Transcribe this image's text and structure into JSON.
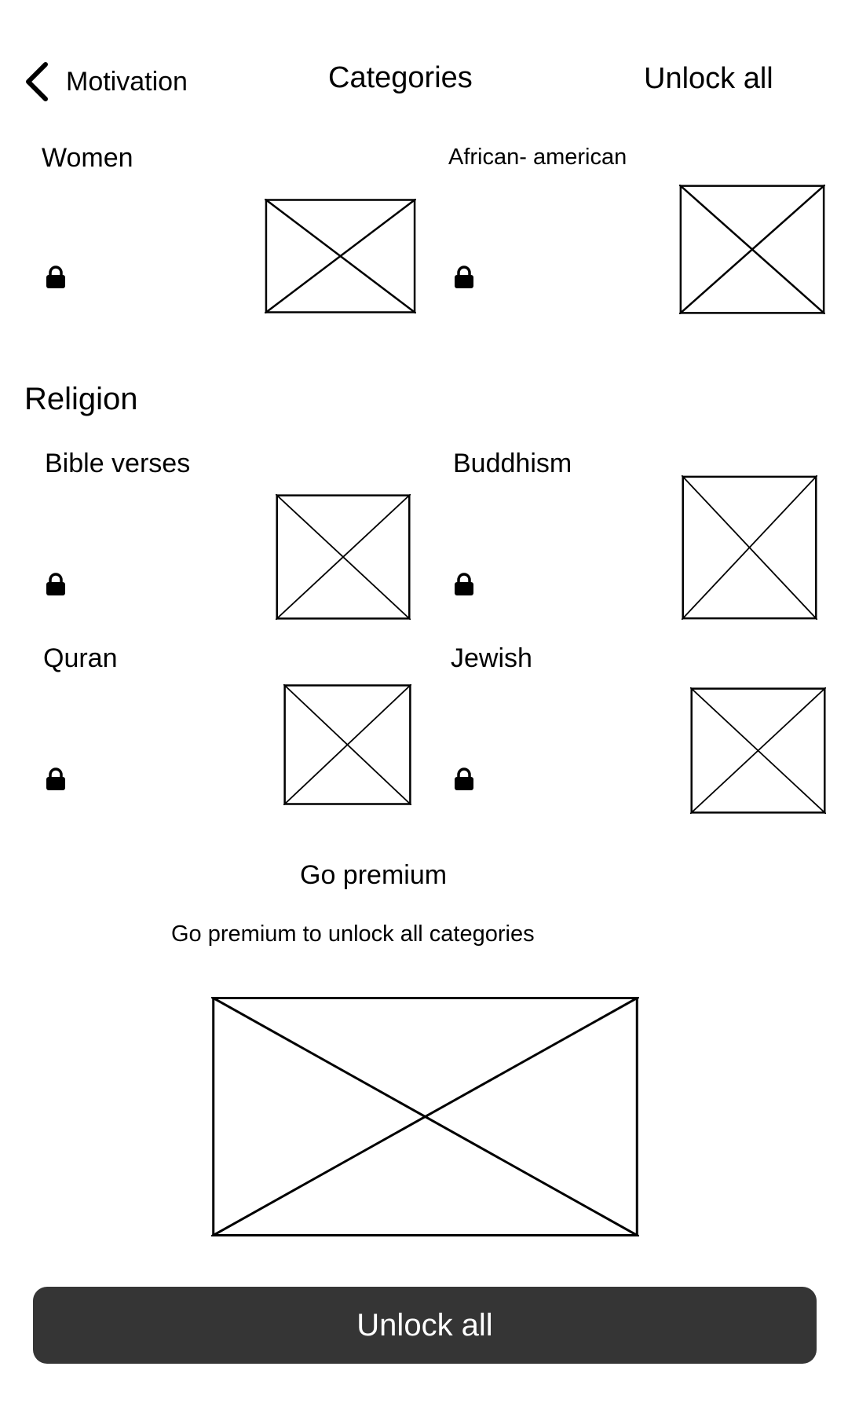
{
  "header": {
    "back_label": "Motivation",
    "title": "Categories",
    "unlock_all_label": "Unlock all",
    "back_icon": "chevron-left-icon"
  },
  "top_categories": [
    {
      "label": "Women",
      "locked": true
    },
    {
      "label": "African- american",
      "locked": true
    }
  ],
  "religion": {
    "title": "Religion",
    "items": [
      {
        "label": "Bible verses",
        "locked": true
      },
      {
        "label": "Buddhism",
        "locked": true
      },
      {
        "label": "Quran",
        "locked": true
      },
      {
        "label": "Jewish",
        "locked": true
      }
    ]
  },
  "premium": {
    "title": "Go premium",
    "subtitle": "Go premium to unlock all categories",
    "button_label": "Unlock all"
  },
  "icons": {
    "lock": "lock-icon",
    "placeholder": "image-placeholder-icon"
  },
  "colors": {
    "button_bg": "#353535",
    "button_text": "#ffffff",
    "text": "#000000",
    "background": "#ffffff"
  }
}
